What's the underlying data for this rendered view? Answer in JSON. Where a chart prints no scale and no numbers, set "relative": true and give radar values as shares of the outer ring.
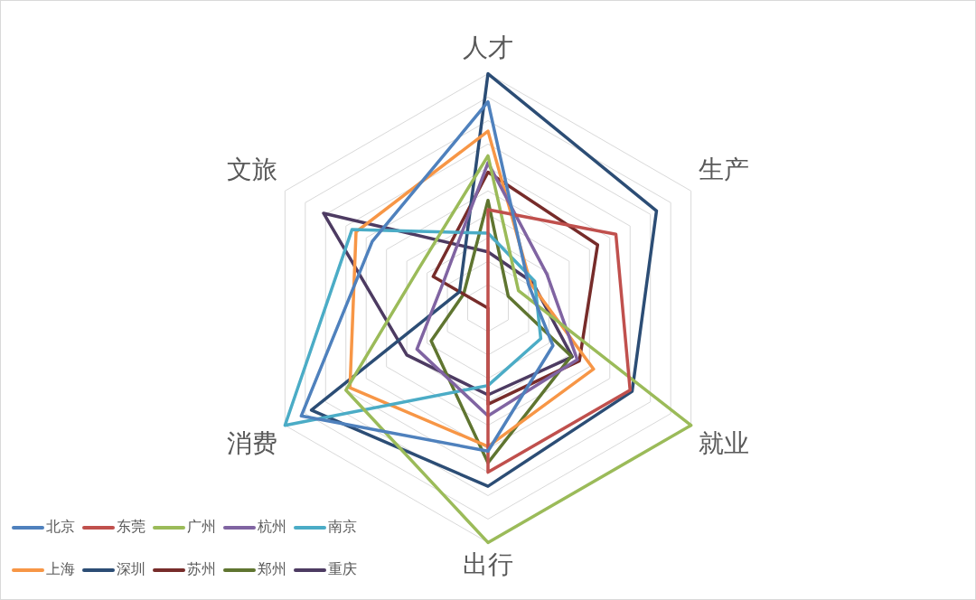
{
  "chart_data": {
    "type": "radar",
    "relative": true,
    "grid": true,
    "legend": "bottom left",
    "line_style": "solid",
    "marker": "none",
    "categories": [
      "人才",
      "生产",
      "就业",
      "出行",
      "消费",
      "文旅"
    ],
    "series": [
      {
        "name": "北京",
        "color": "#4f81bd",
        "values": [
          0.88,
          0.2,
          0.32,
          0.61,
          0.92,
          0.57
        ]
      },
      {
        "name": "东莞",
        "color": "#c0504d",
        "values": [
          0.42,
          0.63,
          0.7,
          0.7,
          0,
          0
        ]
      },
      {
        "name": "广州",
        "color": "#9bbb59",
        "values": [
          0.65,
          0.15,
          1.0,
          1.0,
          0.7,
          0.34
        ]
      },
      {
        "name": "杭州",
        "color": "#8064a2",
        "values": [
          0.62,
          0.29,
          0.44,
          0.46,
          0.35,
          0.22
        ]
      },
      {
        "name": "南京",
        "color": "#4bacc6",
        "values": [
          0.32,
          0.23,
          0.26,
          0.33,
          1.0,
          0.67
        ]
      },
      {
        "name": "上海",
        "color": "#f79646",
        "values": [
          0.755,
          0.21,
          0.52,
          0.59,
          0.68,
          0.65
        ]
      },
      {
        "name": "深圳",
        "color": "#2c4d75",
        "values": [
          1.0,
          0.83,
          0.71,
          0.76,
          0.87,
          0.14
        ]
      },
      {
        "name": "苏州",
        "color": "#772c2a",
        "values": [
          0.58,
          0.54,
          0.45,
          0.41,
          0,
          0.27
        ]
      },
      {
        "name": "郑州",
        "color": "#5f7530",
        "values": [
          0.46,
          0.1,
          0.41,
          0.66,
          0.28,
          0.12
        ]
      },
      {
        "name": "重庆",
        "color": "#4d3b62",
        "values": [
          0.24,
          0.22,
          0.415,
          0.37,
          0.4,
          0.81
        ]
      }
    ]
  }
}
